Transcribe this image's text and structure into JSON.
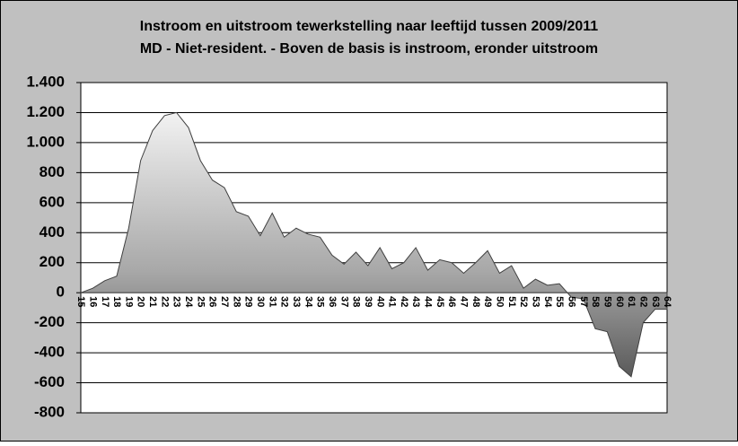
{
  "chart_data": {
    "type": "area",
    "title": "Instroom en uitstroom tewerkstelling naar leeftijd tussen 2009/2011",
    "subtitle": "MD - Niet-resident. - Boven de basis is instroom, eronder uitstroom",
    "categories": [
      "15",
      "16",
      "17",
      "18",
      "19",
      "20",
      "21",
      "22",
      "23",
      "24",
      "25",
      "26",
      "27",
      "28",
      "29",
      "30",
      "31",
      "32",
      "33",
      "34",
      "35",
      "36",
      "37",
      "38",
      "39",
      "40",
      "41",
      "42",
      "43",
      "44",
      "45",
      "46",
      "47",
      "48",
      "49",
      "50",
      "51",
      "52",
      "53",
      "54",
      "55",
      "56",
      "57",
      "58",
      "59",
      "60",
      "61",
      "62",
      "63",
      "64"
    ],
    "values": [
      0,
      30,
      80,
      110,
      430,
      880,
      1080,
      1180,
      1200,
      1100,
      880,
      750,
      700,
      540,
      510,
      380,
      530,
      370,
      430,
      390,
      370,
      250,
      190,
      270,
      180,
      300,
      160,
      200,
      300,
      150,
      220,
      200,
      130,
      200,
      280,
      130,
      180,
      30,
      90,
      50,
      60,
      -30,
      -40,
      -240,
      -260,
      -490,
      -560,
      -200,
      -110,
      -110
    ],
    "color": "#404040",
    "ylim": [
      -800,
      1400
    ],
    "yticks": [
      -800,
      -600,
      -400,
      -200,
      0,
      200,
      400,
      600,
      800,
      {
        "value": 1000,
        "label": "1.000"
      },
      {
        "value": 1200,
        "label": "1.200"
      },
      {
        "value": 1400,
        "label": "1.400"
      }
    ],
    "grid": true
  }
}
